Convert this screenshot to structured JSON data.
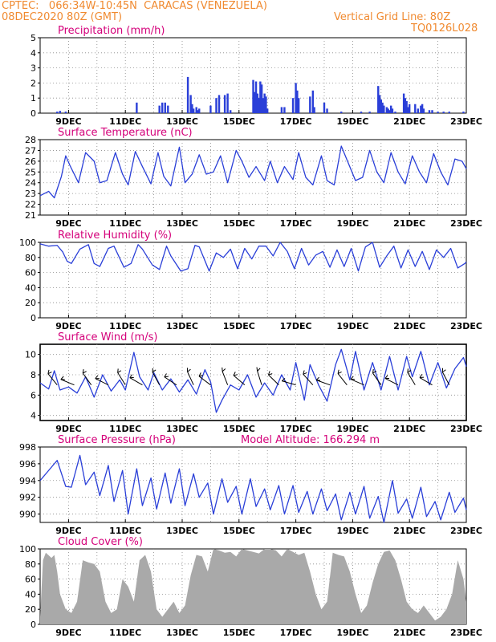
{
  "header": {
    "line1": "CPTEC:   066:34W-10:45N  CARACAS (VENEZUELA)",
    "line2": "08DEC2020 80Z (GMT)",
    "grid_note": "Vertical Grid Line: 80Z",
    "code": "TQ0126L028"
  },
  "colors": {
    "header": "#f08a30",
    "title": "#d4007a",
    "series": "#2a3fd8",
    "cloud": "#a9a9a9"
  },
  "x_axis": {
    "ticks": [
      "9DEC",
      "11DEC",
      "13DEC",
      "15DEC",
      "17DEC",
      "19DEC",
      "21DEC",
      "23DEC"
    ],
    "start_day": 8,
    "end_day": 23,
    "grid": "dotted"
  },
  "chart_data": [
    {
      "id": "precip",
      "type": "bar",
      "title": "Precipitation (mm/h)",
      "ylim": [
        0,
        5
      ],
      "yticks": [
        0,
        1,
        2,
        3,
        4,
        5
      ],
      "x": [
        8.6,
        8.7,
        8.9,
        11.4,
        12.2,
        12.3,
        12.4,
        12.5,
        13.2,
        13.3,
        13.35,
        13.4,
        13.5,
        13.55,
        13.6,
        14.0,
        14.2,
        14.3,
        14.5,
        14.6,
        14.7,
        15.5,
        15.55,
        15.6,
        15.65,
        15.7,
        15.75,
        15.8,
        15.85,
        15.9,
        15.95,
        16.0,
        16.5,
        16.6,
        16.9,
        17.0,
        17.05,
        17.1,
        17.5,
        17.6,
        17.65,
        18.0,
        18.1,
        18.6,
        19.3,
        19.6,
        19.9,
        19.95,
        20.0,
        20.05,
        20.1,
        20.2,
        20.25,
        20.3,
        20.35,
        20.4,
        20.5,
        20.8,
        20.85,
        20.9,
        20.95,
        21.0,
        21.2,
        21.3,
        21.4,
        21.45,
        21.5,
        21.7,
        21.8,
        22.0,
        22.2,
        22.4,
        22.9
      ],
      "values": [
        0.1,
        0.15,
        0.1,
        0.7,
        0.5,
        0.7,
        0.7,
        0.5,
        2.4,
        1.2,
        0.6,
        0.3,
        0.4,
        0.2,
        0.3,
        0.5,
        1.0,
        1.2,
        1.2,
        1.3,
        0.2,
        2.2,
        1.4,
        2.1,
        1.3,
        1.0,
        2.1,
        1.9,
        1.0,
        1.3,
        1.1,
        0.3,
        0.4,
        0.4,
        1.0,
        2.0,
        1.5,
        1.0,
        1.1,
        1.5,
        0.4,
        0.7,
        0.3,
        0.1,
        0.1,
        0.1,
        1.8,
        1.2,
        0.9,
        0.7,
        0.5,
        0.4,
        0.3,
        0.2,
        0.5,
        0.3,
        0.1,
        1.3,
        1.0,
        0.8,
        0.4,
        0.6,
        0.6,
        0.3,
        0.5,
        0.6,
        0.3,
        0.2,
        0.2,
        0.1,
        0.1,
        0.1,
        0.1
      ]
    },
    {
      "id": "temp",
      "type": "line",
      "title": "Surface Temperature (nC)",
      "ylim": [
        21,
        28
      ],
      "yticks": [
        21,
        22,
        23,
        24,
        25,
        26,
        27,
        28
      ],
      "x": [
        8.0,
        8.3,
        8.5,
        8.75,
        8.9,
        9.05,
        9.35,
        9.6,
        9.9,
        10.1,
        10.35,
        10.65,
        10.9,
        11.1,
        11.35,
        11.6,
        11.9,
        12.15,
        12.35,
        12.6,
        12.9,
        13.1,
        13.35,
        13.6,
        13.85,
        14.1,
        14.35,
        14.6,
        14.9,
        15.1,
        15.35,
        15.6,
        15.9,
        16.1,
        16.35,
        16.6,
        16.9,
        17.1,
        17.35,
        17.6,
        17.9,
        18.1,
        18.35,
        18.6,
        18.85,
        19.1,
        19.35,
        19.6,
        19.85,
        20.1,
        20.35,
        20.6,
        20.85,
        21.1,
        21.35,
        21.6,
        21.85,
        22.1,
        22.35,
        22.6,
        22.85,
        23.0
      ],
      "values": [
        22.8,
        23.2,
        22.6,
        24.6,
        26.5,
        25.6,
        24.0,
        26.8,
        26.0,
        24.0,
        24.2,
        26.8,
        24.8,
        23.8,
        26.9,
        25.5,
        23.9,
        26.8,
        24.6,
        23.7,
        27.3,
        24.0,
        24.8,
        26.6,
        24.8,
        25.0,
        26.5,
        24.0,
        27.0,
        26.0,
        24.5,
        25.5,
        24.2,
        26.0,
        24.0,
        25.5,
        24.3,
        26.8,
        24.5,
        23.8,
        26.5,
        24.2,
        23.8,
        27.4,
        25.8,
        24.2,
        24.5,
        27.0,
        25.0,
        24.0,
        26.8,
        25.0,
        23.9,
        26.5,
        25.0,
        24.0,
        26.7,
        25.0,
        23.8,
        26.2,
        26.0,
        25.3
      ]
    },
    {
      "id": "rh",
      "type": "line",
      "title": "Relative Humidity (%)",
      "ylim": [
        0,
        100
      ],
      "yticks": [
        0,
        20,
        40,
        60,
        80,
        100
      ],
      "x": [
        8.0,
        8.3,
        8.6,
        8.8,
        8.95,
        9.1,
        9.4,
        9.7,
        9.9,
        10.1,
        10.4,
        10.6,
        10.95,
        11.2,
        11.45,
        11.6,
        11.95,
        12.2,
        12.45,
        12.6,
        12.95,
        13.2,
        13.45,
        13.6,
        13.95,
        14.2,
        14.45,
        14.7,
        14.95,
        15.2,
        15.45,
        15.7,
        15.95,
        16.2,
        16.45,
        16.7,
        16.95,
        17.2,
        17.45,
        17.7,
        17.95,
        18.2,
        18.45,
        18.7,
        18.95,
        19.2,
        19.45,
        19.7,
        19.95,
        20.2,
        20.45,
        20.7,
        20.95,
        21.2,
        21.45,
        21.7,
        21.95,
        22.2,
        22.45,
        22.7,
        22.95,
        23.0
      ],
      "values": [
        98,
        95,
        96,
        87,
        75,
        72,
        91,
        97,
        72,
        68,
        92,
        95,
        67,
        72,
        97,
        91,
        70,
        64,
        95,
        82,
        62,
        65,
        96,
        94,
        62,
        86,
        80,
        91,
        65,
        92,
        78,
        95,
        95,
        82,
        100,
        88,
        65,
        92,
        70,
        83,
        88,
        67,
        90,
        68,
        92,
        62,
        94,
        100,
        67,
        82,
        95,
        66,
        90,
        68,
        88,
        64,
        90,
        80,
        92,
        66,
        72,
        74
      ]
    },
    {
      "id": "wind",
      "type": "line",
      "title": "Surface Wind (m/s)",
      "ylim": [
        3.5,
        11
      ],
      "yticks": [
        4,
        6,
        8,
        10
      ],
      "x": [
        8.0,
        8.3,
        8.5,
        8.7,
        9.0,
        9.3,
        9.6,
        9.9,
        10.2,
        10.5,
        10.8,
        11.0,
        11.3,
        11.5,
        11.8,
        12.0,
        12.3,
        12.6,
        12.9,
        13.2,
        13.5,
        13.8,
        14.0,
        14.2,
        14.4,
        14.7,
        15.0,
        15.3,
        15.6,
        15.9,
        16.2,
        16.5,
        16.8,
        17.0,
        17.3,
        17.5,
        17.8,
        18.1,
        18.4,
        18.6,
        18.9,
        19.1,
        19.4,
        19.7,
        20.0,
        20.3,
        20.6,
        20.9,
        21.1,
        21.4,
        21.7,
        22.0,
        22.3,
        22.6,
        22.9,
        23.0
      ],
      "values": [
        7.2,
        6.6,
        8.4,
        6.5,
        6.8,
        6.2,
        7.8,
        5.8,
        8.0,
        6.4,
        7.5,
        6.5,
        10.2,
        7.8,
        6.5,
        8.2,
        6.5,
        7.6,
        6.3,
        7.5,
        6.1,
        8.5,
        7.3,
        4.3,
        5.5,
        7.0,
        6.5,
        8.0,
        5.8,
        7.2,
        6.0,
        8.0,
        6.5,
        9.2,
        5.5,
        9.0,
        7.0,
        5.4,
        9.0,
        10.5,
        7.5,
        10.3,
        6.5,
        9.2,
        6.5,
        9.8,
        6.5,
        9.8,
        7.8,
        10.3,
        7.0,
        9.2,
        6.7,
        8.6,
        9.7,
        8.8
      ]
    },
    {
      "id": "pressure",
      "type": "line",
      "title": "Surface Pressure (hPa)",
      "note": "Model Altitude: 166.294 m",
      "ylim": [
        989,
        998
      ],
      "yticks": [
        990,
        992,
        994,
        996,
        998
      ],
      "x": [
        8.0,
        8.3,
        8.6,
        8.9,
        9.1,
        9.4,
        9.6,
        9.9,
        10.1,
        10.4,
        10.6,
        10.9,
        11.1,
        11.4,
        11.6,
        11.9,
        12.1,
        12.4,
        12.6,
        12.9,
        13.1,
        13.4,
        13.6,
        13.9,
        14.1,
        14.4,
        14.6,
        14.9,
        15.1,
        15.4,
        15.6,
        15.9,
        16.1,
        16.4,
        16.6,
        16.9,
        17.1,
        17.4,
        17.6,
        17.9,
        18.1,
        18.4,
        18.6,
        18.9,
        19.1,
        19.4,
        19.6,
        19.9,
        20.1,
        20.4,
        20.6,
        20.9,
        21.1,
        21.4,
        21.6,
        21.9,
        22.1,
        22.4,
        22.6,
        22.9,
        23.0
      ],
      "values": [
        994.0,
        995.2,
        996.4,
        993.3,
        993.2,
        997.0,
        993.5,
        995.0,
        992.2,
        995.8,
        991.5,
        995.2,
        990.0,
        995.4,
        991.0,
        994.3,
        990.6,
        994.9,
        991.3,
        995.4,
        991.0,
        994.8,
        992.0,
        993.7,
        990.0,
        994.2,
        991.4,
        993.3,
        990.0,
        994.2,
        990.9,
        993.0,
        990.5,
        993.4,
        990.0,
        993.4,
        990.2,
        992.7,
        990.0,
        993.0,
        990.4,
        992.4,
        989.3,
        992.6,
        990.0,
        993.3,
        989.5,
        992.1,
        989.0,
        994.0,
        990.1,
        991.8,
        989.5,
        993.2,
        989.7,
        991.5,
        989.3,
        992.6,
        990.2,
        991.9,
        990.5
      ]
    },
    {
      "id": "cloud",
      "type": "area",
      "title": "Cloud Cover (%)",
      "ylim": [
        0,
        100
      ],
      "yticks": [
        0,
        20,
        40,
        60,
        80,
        100
      ],
      "x": [
        8.0,
        8.1,
        8.2,
        8.4,
        8.5,
        8.6,
        8.7,
        8.9,
        9.1,
        9.3,
        9.5,
        9.7,
        9.9,
        10.1,
        10.3,
        10.5,
        10.7,
        10.9,
        11.1,
        11.3,
        11.5,
        11.7,
        11.9,
        12.1,
        12.3,
        12.5,
        12.7,
        12.9,
        13.1,
        13.3,
        13.5,
        13.7,
        13.9,
        14.1,
        14.3,
        14.5,
        14.7,
        14.9,
        15.1,
        15.3,
        15.5,
        15.7,
        15.9,
        16.1,
        16.3,
        16.5,
        16.7,
        16.9,
        17.1,
        17.3,
        17.5,
        17.7,
        17.9,
        18.1,
        18.3,
        18.5,
        18.7,
        18.9,
        19.1,
        19.3,
        19.5,
        19.7,
        19.9,
        20.1,
        20.3,
        20.5,
        20.7,
        20.9,
        21.1,
        21.3,
        21.5,
        21.7,
        21.9,
        22.1,
        22.3,
        22.5,
        22.7,
        22.9,
        23.0
      ],
      "values": [
        10,
        85,
        95,
        88,
        92,
        70,
        40,
        20,
        15,
        30,
        85,
        82,
        80,
        70,
        30,
        15,
        20,
        60,
        50,
        30,
        85,
        92,
        70,
        20,
        10,
        20,
        30,
        15,
        25,
        65,
        92,
        90,
        70,
        100,
        98,
        95,
        96,
        90,
        100,
        98,
        96,
        94,
        100,
        100,
        98,
        90,
        100,
        96,
        92,
        95,
        70,
        40,
        20,
        30,
        95,
        92,
        90,
        70,
        40,
        15,
        25,
        55,
        80,
        96,
        98,
        85,
        60,
        30,
        20,
        15,
        25,
        15,
        5,
        10,
        20,
        40,
        85,
        60,
        30
      ]
    }
  ]
}
